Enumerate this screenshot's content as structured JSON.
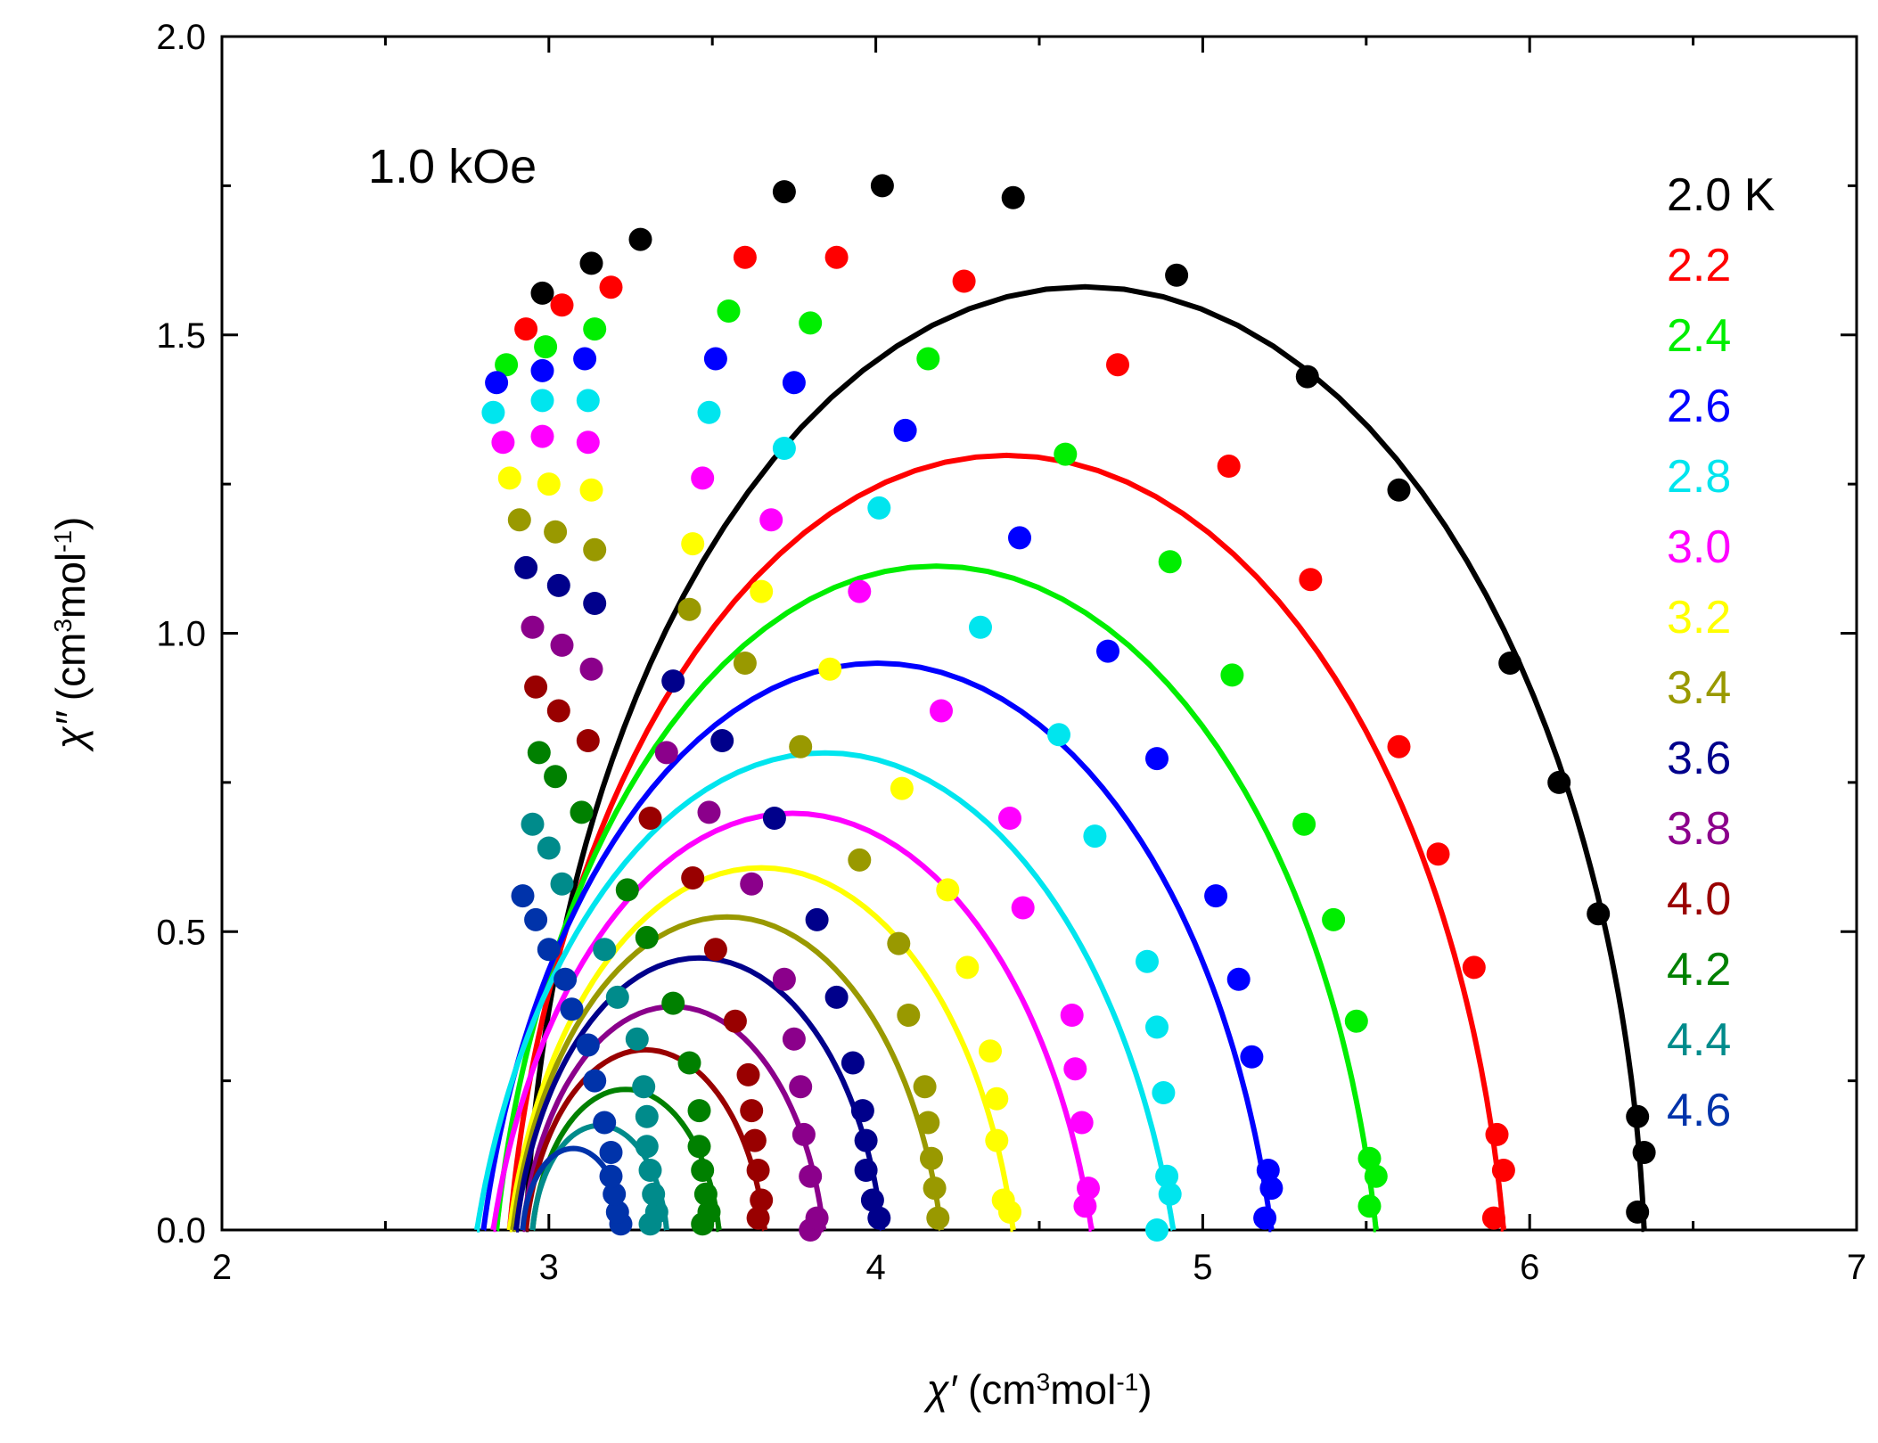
{
  "chart_data": {
    "type": "scatter",
    "title": "",
    "annotation": "1.0 kOe",
    "xlabel": {
      "symbol": "χ′",
      "unit_open": "(cm",
      "unit_exp1": "3",
      "unit_mid": "mol",
      "unit_exp2": "-1",
      "unit_close": ")"
    },
    "ylabel": {
      "symbol": "χ″",
      "unit_open": "(cm",
      "unit_exp1": "3",
      "unit_mid": "mol",
      "unit_exp2": "-1",
      "unit_close": ")"
    },
    "xlim": [
      2,
      7
    ],
    "ylim": [
      0,
      2.0
    ],
    "xticks": [
      2,
      3,
      4,
      5,
      6,
      7
    ],
    "xtick_labels": [
      "2",
      "3",
      "4",
      "5",
      "6",
      "7"
    ],
    "yticks": [
      0,
      0.5,
      1.0,
      1.5,
      2.0
    ],
    "ytick_labels": [
      "0.0",
      "0.5",
      "1.0",
      "1.5",
      "2.0"
    ],
    "legend_position": "right",
    "series": [
      {
        "name": "2.0 K",
        "color": "#000000",
        "fit": {
          "chi_s": 2.93,
          "chi_t": 6.35,
          "alpha": 0.05
        },
        "points": [
          [
            6.33,
            0.03
          ],
          [
            6.35,
            0.13
          ],
          [
            6.33,
            0.19
          ],
          [
            6.21,
            0.53
          ],
          [
            6.09,
            0.75
          ],
          [
            5.94,
            0.95
          ],
          [
            5.6,
            1.24
          ],
          [
            5.32,
            1.43
          ],
          [
            4.92,
            1.6
          ],
          [
            4.42,
            1.73
          ],
          [
            4.02,
            1.75
          ],
          [
            3.72,
            1.74
          ],
          [
            3.28,
            1.66
          ],
          [
            3.13,
            1.62
          ],
          [
            2.98,
            1.57
          ]
        ]
      },
      {
        "name": "2.2",
        "color": "#ff0000",
        "fit": {
          "chi_s": 2.88,
          "chi_t": 5.92,
          "alpha": 0.1
        },
        "points": [
          [
            5.89,
            0.02
          ],
          [
            5.92,
            0.1
          ],
          [
            5.9,
            0.16
          ],
          [
            5.83,
            0.44
          ],
          [
            5.72,
            0.63
          ],
          [
            5.6,
            0.81
          ],
          [
            5.33,
            1.09
          ],
          [
            5.08,
            1.28
          ],
          [
            4.74,
            1.45
          ],
          [
            4.27,
            1.59
          ],
          [
            3.88,
            1.63
          ],
          [
            3.6,
            1.63
          ],
          [
            3.19,
            1.58
          ],
          [
            3.04,
            1.55
          ],
          [
            2.93,
            1.51
          ]
        ]
      },
      {
        "name": "2.4",
        "color": "#00ee00",
        "fit": {
          "chi_s": 2.84,
          "chi_t": 5.53,
          "alpha": 0.12
        },
        "points": [
          [
            5.51,
            0.04
          ],
          [
            5.53,
            0.09
          ],
          [
            5.51,
            0.12
          ],
          [
            5.47,
            0.35
          ],
          [
            5.4,
            0.52
          ],
          [
            5.31,
            0.68
          ],
          [
            5.09,
            0.93
          ],
          [
            4.9,
            1.12
          ],
          [
            4.58,
            1.3
          ],
          [
            4.16,
            1.46
          ],
          [
            3.8,
            1.52
          ],
          [
            3.55,
            1.54
          ],
          [
            3.14,
            1.51
          ],
          [
            2.99,
            1.48
          ],
          [
            2.87,
            1.45
          ]
        ]
      },
      {
        "name": "2.6",
        "color": "#0000ff",
        "fit": {
          "chi_s": 2.8,
          "chi_t": 5.21,
          "alpha": 0.15
        },
        "points": [
          [
            5.19,
            0.02
          ],
          [
            5.21,
            0.07
          ],
          [
            5.2,
            0.1
          ],
          [
            5.15,
            0.29
          ],
          [
            5.11,
            0.42
          ],
          [
            5.04,
            0.56
          ],
          [
            4.86,
            0.79
          ],
          [
            4.71,
            0.97
          ],
          [
            4.44,
            1.16
          ],
          [
            4.09,
            1.34
          ],
          [
            3.75,
            1.42
          ],
          [
            3.51,
            1.46
          ],
          [
            3.11,
            1.46
          ],
          [
            2.98,
            1.44
          ],
          [
            2.84,
            1.42
          ]
        ]
      },
      {
        "name": "2.8",
        "color": "#00e5ee",
        "fit": {
          "chi_s": 2.78,
          "chi_t": 4.91,
          "alpha": 0.18
        },
        "points": [
          [
            4.86,
            0.0
          ],
          [
            4.9,
            0.06
          ],
          [
            4.89,
            0.09
          ],
          [
            4.88,
            0.23
          ],
          [
            4.86,
            0.34
          ],
          [
            4.83,
            0.45
          ],
          [
            4.67,
            0.66
          ],
          [
            4.56,
            0.83
          ],
          [
            4.32,
            1.01
          ],
          [
            4.01,
            1.21
          ],
          [
            3.72,
            1.31
          ],
          [
            3.49,
            1.37
          ],
          [
            3.12,
            1.39
          ],
          [
            2.98,
            1.39
          ],
          [
            2.83,
            1.37
          ]
        ]
      },
      {
        "name": "3.0",
        "color": "#ff00ff",
        "fit": {
          "chi_s": 2.83,
          "chi_t": 4.66,
          "alpha": 0.17
        },
        "points": [
          [
            4.64,
            0.04
          ],
          [
            4.65,
            0.07
          ],
          [
            4.63,
            0.18
          ],
          [
            4.61,
            0.27
          ],
          [
            4.6,
            0.36
          ],
          [
            4.45,
            0.54
          ],
          [
            4.41,
            0.69
          ],
          [
            4.2,
            0.87
          ],
          [
            3.95,
            1.07
          ],
          [
            3.68,
            1.19
          ],
          [
            3.47,
            1.26
          ],
          [
            3.12,
            1.32
          ],
          [
            2.98,
            1.33
          ],
          [
            2.86,
            1.32
          ]
        ]
      },
      {
        "name": "3.2",
        "color": "#ffff00",
        "fit": {
          "chi_s": 2.88,
          "chi_t": 4.42,
          "alpha": 0.15
        },
        "points": [
          [
            4.41,
            0.03
          ],
          [
            4.39,
            0.05
          ],
          [
            4.37,
            0.15
          ],
          [
            4.37,
            0.22
          ],
          [
            4.35,
            0.3
          ],
          [
            4.28,
            0.44
          ],
          [
            4.22,
            0.57
          ],
          [
            4.08,
            0.74
          ],
          [
            3.86,
            0.94
          ],
          [
            3.65,
            1.07
          ],
          [
            3.44,
            1.15
          ],
          [
            3.13,
            1.24
          ],
          [
            3.0,
            1.25
          ],
          [
            2.88,
            1.26
          ]
        ]
      },
      {
        "name": "3.4",
        "color": "#999900",
        "fit": {
          "chi_s": 2.89,
          "chi_t": 4.2,
          "alpha": 0.14
        },
        "points": [
          [
            4.19,
            0.02
          ],
          [
            4.18,
            0.07
          ],
          [
            4.17,
            0.12
          ],
          [
            4.16,
            0.18
          ],
          [
            4.15,
            0.24
          ],
          [
            4.1,
            0.36
          ],
          [
            4.07,
            0.48
          ],
          [
            3.95,
            0.62
          ],
          [
            3.77,
            0.81
          ],
          [
            3.6,
            0.95
          ],
          [
            3.43,
            1.04
          ],
          [
            3.14,
            1.14
          ],
          [
            3.02,
            1.17
          ],
          [
            2.91,
            1.19
          ]
        ]
      },
      {
        "name": "3.6",
        "color": "#00008b",
        "fit": {
          "chi_s": 2.9,
          "chi_t": 4.02,
          "alpha": 0.13
        },
        "points": [
          [
            4.01,
            0.02
          ],
          [
            3.99,
            0.05
          ],
          [
            3.97,
            0.1
          ],
          [
            3.97,
            0.15
          ],
          [
            3.96,
            0.2
          ],
          [
            3.93,
            0.28
          ],
          [
            3.88,
            0.39
          ],
          [
            3.82,
            0.52
          ],
          [
            3.69,
            0.69
          ],
          [
            3.53,
            0.82
          ],
          [
            3.38,
            0.92
          ],
          [
            3.14,
            1.05
          ],
          [
            3.03,
            1.08
          ],
          [
            2.93,
            1.11
          ]
        ]
      },
      {
        "name": "3.8",
        "color": "#8b008b",
        "fit": {
          "chi_s": 2.92,
          "chi_t": 3.84,
          "alpha": 0.13
        },
        "points": [
          [
            3.8,
            0.0
          ],
          [
            3.82,
            0.02
          ],
          [
            3.8,
            0.09
          ],
          [
            3.78,
            0.16
          ],
          [
            3.77,
            0.24
          ],
          [
            3.75,
            0.32
          ],
          [
            3.72,
            0.42
          ],
          [
            3.62,
            0.58
          ],
          [
            3.49,
            0.7
          ],
          [
            3.36,
            0.8
          ],
          [
            3.13,
            0.94
          ],
          [
            3.04,
            0.98
          ],
          [
            2.95,
            1.01
          ]
        ]
      },
      {
        "name": "4.0",
        "color": "#990000",
        "fit": {
          "chi_s": 2.93,
          "chi_t": 3.66,
          "alpha": 0.12
        },
        "points": [
          [
            3.64,
            0.02
          ],
          [
            3.65,
            0.05
          ],
          [
            3.64,
            0.1
          ],
          [
            3.63,
            0.15
          ],
          [
            3.62,
            0.2
          ],
          [
            3.61,
            0.26
          ],
          [
            3.57,
            0.35
          ],
          [
            3.51,
            0.47
          ],
          [
            3.44,
            0.59
          ],
          [
            3.31,
            0.69
          ],
          [
            3.12,
            0.82
          ],
          [
            3.03,
            0.87
          ],
          [
            2.96,
            0.91
          ]
        ]
      },
      {
        "name": "4.2",
        "color": "#008000",
        "fit": {
          "chi_s": 2.95,
          "chi_t": 3.52,
          "alpha": 0.12
        },
        "points": [
          [
            3.47,
            0.01
          ],
          [
            3.49,
            0.03
          ],
          [
            3.48,
            0.06
          ],
          [
            3.47,
            0.1
          ],
          [
            3.46,
            0.14
          ],
          [
            3.46,
            0.2
          ],
          [
            3.43,
            0.28
          ],
          [
            3.38,
            0.38
          ],
          [
            3.3,
            0.49
          ],
          [
            3.24,
            0.57
          ],
          [
            3.1,
            0.7
          ],
          [
            3.02,
            0.76
          ],
          [
            2.97,
            0.8
          ]
        ]
      },
      {
        "name": "4.4",
        "color": "#008b8b",
        "fit": {
          "chi_s": 2.95,
          "chi_t": 3.36,
          "alpha": 0.1
        },
        "points": [
          [
            3.31,
            0.01
          ],
          [
            3.33,
            0.03
          ],
          [
            3.32,
            0.06
          ],
          [
            3.31,
            0.1
          ],
          [
            3.3,
            0.14
          ],
          [
            3.3,
            0.19
          ],
          [
            3.29,
            0.24
          ],
          [
            3.27,
            0.32
          ],
          [
            3.21,
            0.39
          ],
          [
            3.17,
            0.47
          ],
          [
            3.04,
            0.58
          ],
          [
            3.0,
            0.64
          ],
          [
            2.95,
            0.68
          ]
        ]
      },
      {
        "name": "4.6",
        "color": "#0033aa",
        "fit": {
          "chi_s": 2.92,
          "chi_t": 3.23,
          "alpha": 0.08
        },
        "points": [
          [
            3.22,
            0.01
          ],
          [
            3.21,
            0.03
          ],
          [
            3.2,
            0.06
          ],
          [
            3.19,
            0.09
          ],
          [
            3.19,
            0.13
          ],
          [
            3.17,
            0.18
          ],
          [
            3.14,
            0.25
          ],
          [
            3.12,
            0.31
          ],
          [
            3.07,
            0.37
          ],
          [
            3.05,
            0.42
          ],
          [
            3.0,
            0.47
          ],
          [
            2.96,
            0.52
          ],
          [
            2.92,
            0.56
          ]
        ]
      }
    ]
  }
}
